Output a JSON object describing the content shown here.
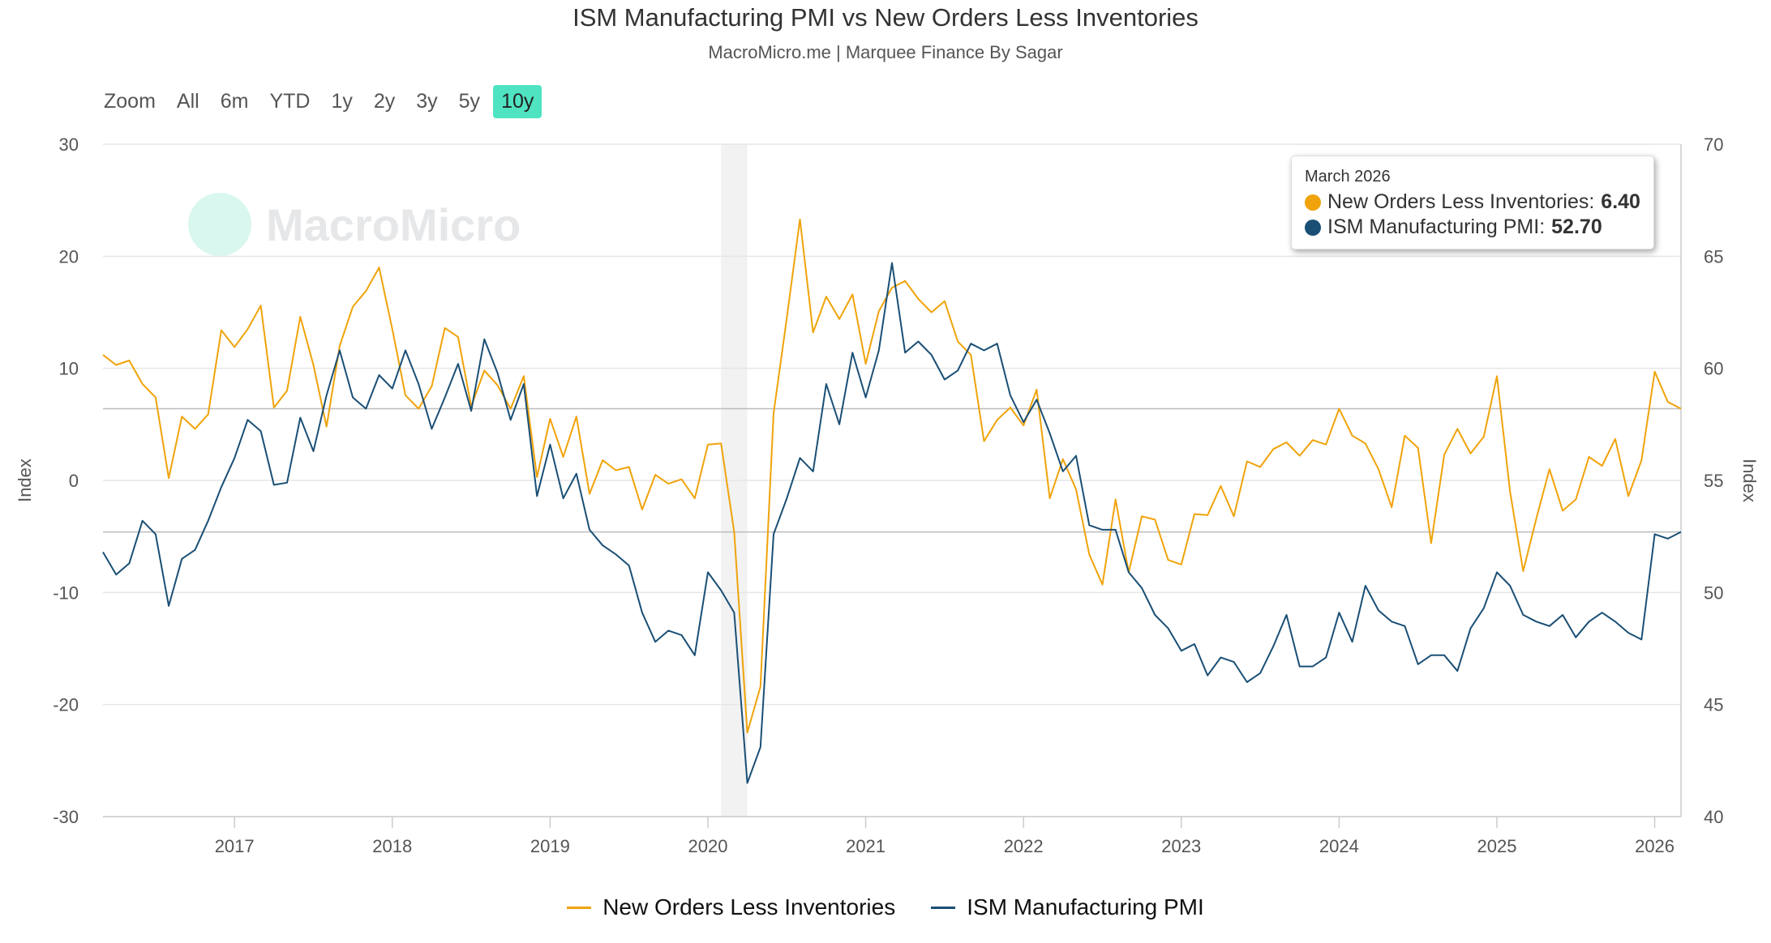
{
  "chart_data": {
    "type": "line",
    "title": "ISM Manufacturing PMI vs New Orders Less Inventories",
    "subtitle": "MacroMicro.me | Marquee Finance By Sagar",
    "start": "2016-03",
    "frequency": "monthly",
    "x_ticks": [
      "2017",
      "2018",
      "2019",
      "2020",
      "2021",
      "2022",
      "2023",
      "2024",
      "2025",
      "2026"
    ],
    "y_left": {
      "label": "Index",
      "range": [
        -30,
        30
      ],
      "ticks": [
        "30",
        "20",
        "10",
        "0",
        "-10",
        "-20",
        "-30"
      ]
    },
    "y_right": {
      "label": "Index",
      "range": [
        40,
        70
      ],
      "ticks": [
        "70",
        "65",
        "60",
        "55",
        "50",
        "45",
        "40"
      ]
    },
    "recession_band": [
      "2020-02",
      "2020-04"
    ],
    "grid": true,
    "legend_position": "bottom",
    "series": [
      {
        "name": "New Orders Less Inventories",
        "axis": "left",
        "color": "#f0a30a",
        "values": [
          11.2,
          10.3,
          10.7,
          8.6,
          7.4,
          0.2,
          5.7,
          4.6,
          5.9,
          13.4,
          11.9,
          13.5,
          15.6,
          6.5,
          8.0,
          14.6,
          10.3,
          4.8,
          12.0,
          15.5,
          16.9,
          19.0,
          13.5,
          7.6,
          6.4,
          8.4,
          13.6,
          12.8,
          6.6,
          9.8,
          8.5,
          6.4,
          9.3,
          0.3,
          5.5,
          2.1,
          5.7,
          -1.2,
          1.8,
          0.9,
          1.2,
          -2.6,
          0.5,
          -0.3,
          0.1,
          -1.6,
          3.2,
          3.3,
          -4.6,
          -22.5,
          -18.4,
          6.0,
          14.5,
          23.3,
          13.2,
          16.4,
          14.4,
          16.6,
          10.4,
          15.1,
          17.2,
          17.8,
          16.2,
          15.0,
          16.0,
          12.4,
          11.2,
          3.5,
          5.4,
          6.5,
          4.9,
          8.1,
          -1.6,
          1.9,
          -0.8,
          -6.6,
          -9.3,
          -1.7,
          -8.2,
          -3.2,
          -3.5,
          -7.1,
          -7.5,
          -3.0,
          -3.1,
          -0.5,
          -3.2,
          1.7,
          1.2,
          2.8,
          3.4,
          2.2,
          3.6,
          3.2,
          6.4,
          4.0,
          3.3,
          1.0,
          -2.4,
          4.0,
          2.9,
          -5.6,
          2.3,
          4.6,
          2.4,
          3.9,
          9.3,
          -1.0,
          -8.1,
          -3.4,
          1.0,
          -2.7,
          -1.7,
          2.1,
          1.3,
          3.7,
          -1.4,
          1.8,
          9.7,
          7.0,
          6.4
        ]
      },
      {
        "name": "ISM Manufacturing PMI",
        "axis": "right",
        "color": "#1a4f75",
        "values": [
          51.8,
          50.8,
          51.3,
          53.2,
          52.6,
          49.4,
          51.5,
          51.9,
          53.2,
          54.7,
          56.0,
          57.7,
          57.2,
          54.8,
          54.9,
          57.8,
          56.3,
          58.8,
          60.8,
          58.7,
          58.2,
          59.7,
          59.1,
          60.8,
          59.3,
          57.3,
          58.7,
          60.2,
          58.1,
          61.3,
          59.8,
          57.7,
          59.3,
          54.3,
          56.6,
          54.2,
          55.3,
          52.8,
          52.1,
          51.7,
          51.2,
          49.1,
          47.8,
          48.3,
          48.1,
          47.2,
          50.9,
          50.1,
          49.1,
          41.5,
          43.1,
          52.6,
          54.2,
          56.0,
          55.4,
          59.3,
          57.5,
          60.7,
          58.7,
          60.8,
          64.7,
          60.7,
          61.2,
          60.6,
          59.5,
          59.9,
          61.1,
          60.8,
          61.1,
          58.8,
          57.6,
          58.6,
          57.1,
          55.4,
          56.1,
          53.0,
          52.8,
          52.8,
          50.9,
          50.2,
          49.0,
          48.4,
          47.4,
          47.7,
          46.3,
          47.1,
          46.9,
          46.0,
          46.4,
          47.6,
          49.0,
          46.7,
          46.7,
          47.1,
          49.1,
          47.8,
          50.3,
          49.2,
          48.7,
          48.5,
          46.8,
          47.2,
          47.2,
          46.5,
          48.4,
          49.3,
          50.9,
          50.3,
          49.0,
          48.7,
          48.5,
          49.0,
          48.0,
          48.7,
          49.1,
          48.7,
          48.2,
          47.9,
          52.6,
          52.4,
          52.7
        ]
      }
    ],
    "tooltip": {
      "date": "March 2026",
      "rows": [
        {
          "label": "New Orders Less Inventories:",
          "value": "6.40"
        },
        {
          "label": "ISM Manufacturing PMI:",
          "value": "52.70"
        }
      ]
    }
  },
  "range_selector": {
    "label": "Zoom",
    "buttons": [
      "All",
      "6m",
      "YTD",
      "1y",
      "2y",
      "3y",
      "5y",
      "10y"
    ],
    "active": "10y"
  },
  "watermark": "MacroMicro"
}
